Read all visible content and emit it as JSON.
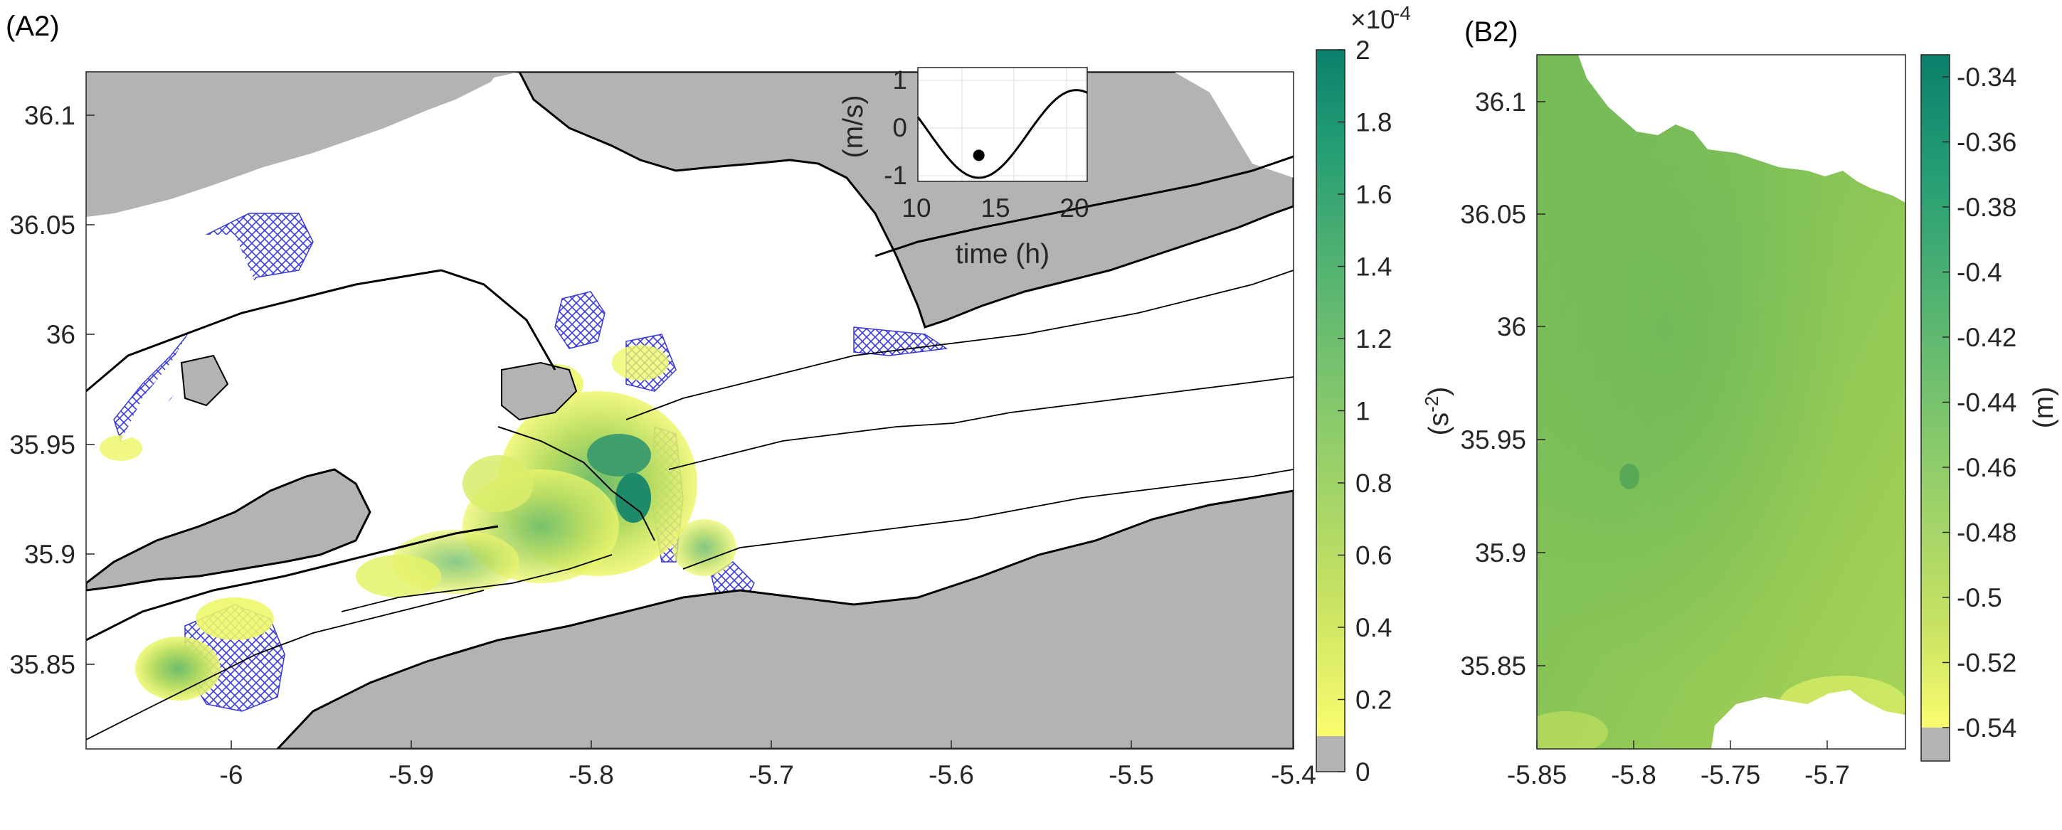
{
  "panel_a": {
    "label": "(A2)",
    "x_ticks": [
      "-6",
      "-5.9",
      "-5.8",
      "-5.7",
      "-5.6",
      "-5.5",
      "-5.4"
    ],
    "y_ticks": [
      "36.1",
      "36.05",
      "36",
      "35.95",
      "35.9",
      "35.85"
    ],
    "xlim": [
      -6.08,
      -5.4
    ],
    "ylim": [
      35.81,
      36.12
    ],
    "colorbar": {
      "ticks": [
        "0",
        "0.2",
        "0.4",
        "0.6",
        "0.8",
        "1",
        "1.2",
        "1.4",
        "1.6",
        "1.8",
        "2"
      ],
      "exponent_base": "×10",
      "exponent": "-4",
      "unit_main": "(s",
      "unit_sup": "-2",
      "unit_close": ")",
      "range": [
        0,
        2
      ],
      "colors": [
        "#b3b3b3",
        "#fafc6e",
        "#c8e263",
        "#8ccb6b",
        "#4fb172",
        "#1f9a74",
        "#0c7f6b"
      ]
    },
    "inset": {
      "ylabel": "(m/s)",
      "xlabel": "time (h)",
      "x_ticks": [
        "10",
        "15",
        "20"
      ],
      "y_ticks": [
        "1",
        "0",
        "-1"
      ],
      "xlim": [
        8.5,
        21
      ],
      "ylim": [
        -1.2,
        1.2
      ],
      "marker": {
        "time": 13,
        "value": -0.65
      }
    },
    "legend_colors": {
      "land": "#b3b3b3",
      "hatch": "#3a3ad6",
      "contour": "#000000"
    }
  },
  "panel_b": {
    "label": "(B2)",
    "x_ticks": [
      "-5.85",
      "-5.8",
      "-5.75",
      "-5.7"
    ],
    "y_ticks": [
      "36.1",
      "36.05",
      "36",
      "35.95",
      "35.9",
      "35.85"
    ],
    "xlim": [
      -5.85,
      -5.66
    ],
    "ylim": [
      35.81,
      36.12
    ],
    "colorbar": {
      "ticks": [
        "-0.34",
        "-0.36",
        "-0.38",
        "-0.4",
        "-0.42",
        "-0.44",
        "-0.46",
        "-0.48",
        "-0.5",
        "-0.52",
        "-0.54"
      ],
      "unit": "(m)",
      "range": [
        -0.55,
        -0.33
      ]
    }
  }
}
